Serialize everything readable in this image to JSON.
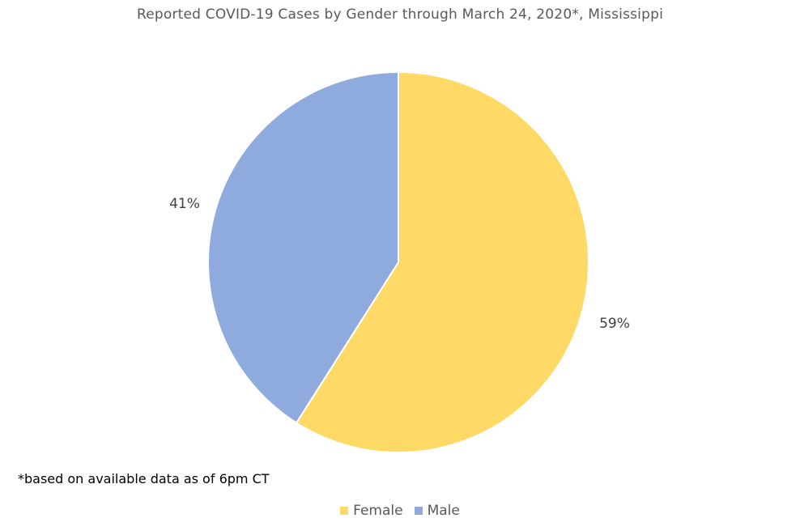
{
  "chart_data": {
    "type": "pie",
    "title": "Reported COVID-19 Cases by Gender through March 24, 2020*, Mississippi",
    "categories": [
      "Female",
      "Male"
    ],
    "values": [
      59,
      41
    ],
    "labels": [
      "59%",
      "41%"
    ],
    "colors": [
      "#FFD966",
      "#8FAADC"
    ],
    "legend_position": "bottom",
    "footnote": "*based on available data as of 6pm CT"
  }
}
